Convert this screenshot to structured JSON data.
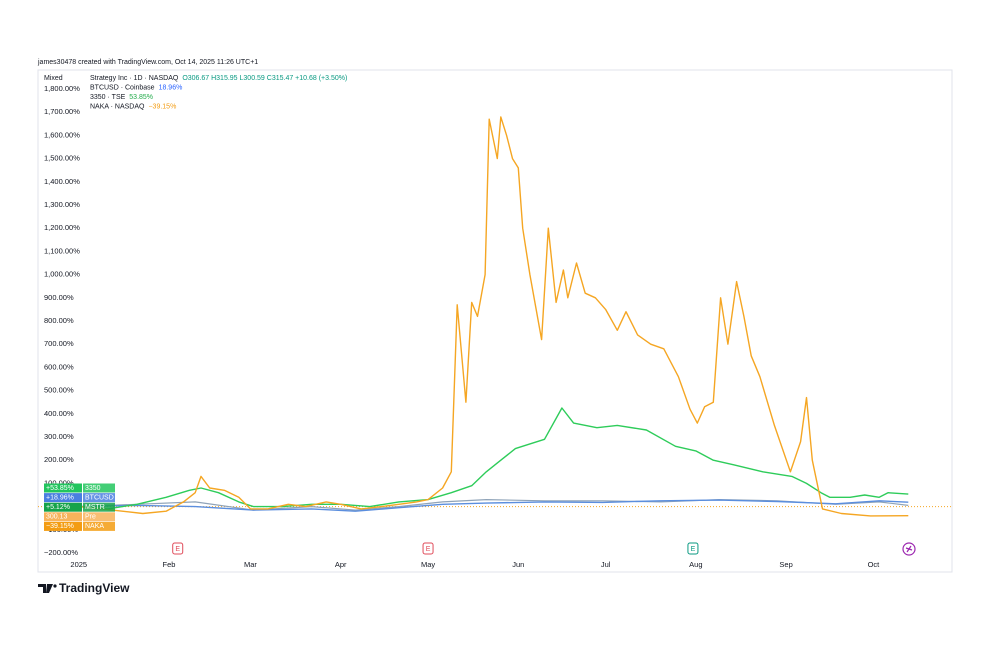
{
  "header": "james30478 created with TradingView.com, Oct 14, 2025 11:26 UTC+1",
  "scale_mode": "Mixed",
  "legend": [
    {
      "name": "Strategy Inc · 1D · NASDAQ",
      "info": "O306.67 H315.95 L300.59 C315.47 +10.68 (+3.50%)",
      "info_color": "#089981"
    },
    {
      "name": "BTCUSD · Coinbase",
      "info": "18.96%",
      "info_color": "#2962ff"
    },
    {
      "name": "3350 · TSE",
      "info": "53.85%",
      "info_color": "#22ab4a"
    },
    {
      "name": "NAKA · NASDAQ",
      "info": "−39.15%",
      "info_color": "#f39c12"
    }
  ],
  "badges": [
    {
      "text": "+53.85%",
      "name": "3350",
      "color": "#22c55e"
    },
    {
      "text": "+18.96%",
      "name": "BTCUSD",
      "color": "#4a7fe0"
    },
    {
      "text": "+5.12%",
      "name": "MSTR",
      "color": "#16a34a"
    },
    {
      "text": "300.13",
      "name": "Pre",
      "color": "#f7b35b"
    },
    {
      "text": "−39.15%",
      "name": "NAKA",
      "color": "#f39c12"
    }
  ],
  "brand": "TradingView",
  "chart_data": {
    "type": "line",
    "xlim": [
      -14,
      300
    ],
    "ylim": [
      -282,
      1882
    ],
    "grid": false,
    "xticks": [
      {
        "value": 0,
        "label": "2025"
      },
      {
        "value": 31,
        "label": "Feb"
      },
      {
        "value": 59,
        "label": "Mar"
      },
      {
        "value": 90,
        "label": "Apr"
      },
      {
        "value": 120,
        "label": "May"
      },
      {
        "value": 151,
        "label": "Jun"
      },
      {
        "value": 181,
        "label": "Jul"
      },
      {
        "value": 212,
        "label": "Aug"
      },
      {
        "value": 243,
        "label": "Sep"
      },
      {
        "value": 273,
        "label": "Oct"
      }
    ],
    "yticks": [
      {
        "value": -200,
        "label": "−200.00%"
      },
      {
        "value": -100,
        "label": "−100.00%"
      },
      {
        "value": 0,
        "label": "0.00%"
      },
      {
        "value": 100,
        "label": "100.00%"
      },
      {
        "value": 200,
        "label": "200.00%"
      },
      {
        "value": 300,
        "label": "300.00%"
      },
      {
        "value": 400,
        "label": "400.00%"
      },
      {
        "value": 500,
        "label": "500.00%"
      },
      {
        "value": 600,
        "label": "600.00%"
      },
      {
        "value": 700,
        "label": "700.00%"
      },
      {
        "value": 800,
        "label": "800.00%"
      },
      {
        "value": 900,
        "label": "900.00%"
      },
      {
        "value": 1000,
        "label": "1,000.00%"
      },
      {
        "value": 1100,
        "label": "1,100.00%"
      },
      {
        "value": 1200,
        "label": "1,200.00%"
      },
      {
        "value": 1300,
        "label": "1,300.00%"
      },
      {
        "value": 1400,
        "label": "1,400.00%"
      },
      {
        "value": 1500,
        "label": "1,500.00%"
      },
      {
        "value": 1600,
        "label": "1,600.00%"
      },
      {
        "value": 1700,
        "label": "1,700.00%"
      },
      {
        "value": 1800,
        "label": "1,800.00%"
      }
    ],
    "events": [
      {
        "label": "E",
        "x": 34,
        "color": "#e04b5a"
      },
      {
        "label": "E",
        "x": 120,
        "color": "#e04b5a"
      },
      {
        "label": "E",
        "x": 211,
        "color": "#089981"
      }
    ],
    "series": [
      {
        "name": "MSTR",
        "color": "#8fa3b8",
        "width": 1.2,
        "x": [
          0,
          20,
          40,
          60,
          80,
          95,
          110,
          125,
          140,
          160,
          180,
          200,
          220,
          240,
          260,
          275,
          285
        ],
        "values": [
          0,
          10,
          20,
          -15,
          0,
          -15,
          0,
          20,
          30,
          25,
          25,
          20,
          30,
          25,
          10,
          20,
          5.12
        ]
      },
      {
        "name": "BTCUSD",
        "color": "#5b8ede",
        "width": 1.4,
        "x": [
          0,
          20,
          40,
          60,
          80,
          95,
          110,
          125,
          140,
          160,
          180,
          200,
          220,
          240,
          260,
          275,
          285
        ],
        "values": [
          0,
          5,
          0,
          -15,
          -10,
          -20,
          -5,
          10,
          15,
          20,
          18,
          25,
          28,
          22,
          12,
          25,
          18.96
        ]
      },
      {
        "name": "3350",
        "color": "#2ecc5a",
        "width": 1.4,
        "x": [
          0,
          10,
          20,
          30,
          38,
          42,
          48,
          55,
          60,
          70,
          80,
          90,
          100,
          110,
          120,
          128,
          135,
          140,
          145,
          150,
          155,
          160,
          166,
          170,
          178,
          185,
          195,
          205,
          212,
          218,
          225,
          235,
          245,
          250,
          255,
          258,
          265,
          270,
          275,
          278,
          285
        ],
        "values": [
          0,
          -10,
          10,
          40,
          70,
          80,
          60,
          20,
          0,
          0,
          10,
          10,
          0,
          20,
          30,
          60,
          90,
          150,
          200,
          250,
          270,
          290,
          425,
          360,
          340,
          350,
          330,
          260,
          240,
          200,
          180,
          150,
          130,
          100,
          60,
          40,
          40,
          50,
          40,
          60,
          53.85
        ]
      },
      {
        "name": "NAKA",
        "color": "#f5a623",
        "width": 1.4,
        "x": [
          0,
          8,
          15,
          22,
          30,
          36,
          40,
          42,
          45,
          50,
          55,
          59,
          65,
          72,
          78,
          85,
          90,
          97,
          104,
          110,
          116,
          120,
          125,
          128,
          130,
          133,
          135,
          137,
          139.6,
          141,
          143.8,
          145,
          147,
          149,
          151,
          152.5,
          155,
          159,
          161.3,
          164,
          166.5,
          168,
          171,
          174,
          177.5,
          181,
          185,
          188,
          192,
          196.5,
          201,
          206,
          210,
          212.5,
          215,
          218,
          220.5,
          223,
          226,
          228.5,
          231,
          234,
          239,
          244.5,
          248,
          250,
          252,
          255.5,
          262,
          272,
          285
        ],
        "values": [
          0,
          -10,
          -20,
          -30,
          -20,
          20,
          60,
          130,
          80,
          70,
          40,
          -10,
          -10,
          10,
          0,
          20,
          10,
          -10,
          0,
          10,
          20,
          30,
          80,
          150,
          870,
          450,
          880,
          820,
          1000,
          1670,
          1500,
          1680,
          1600,
          1500,
          1460,
          1200,
          1000,
          720,
          1200,
          880,
          1020,
          900,
          1050,
          920,
          900,
          850,
          760,
          840,
          740,
          700,
          680,
          560,
          420,
          360,
          430,
          450,
          900,
          700,
          970,
          820,
          650,
          560,
          350,
          150,
          280,
          470,
          200,
          -10,
          -30,
          -40,
          -39.15
        ]
      }
    ]
  }
}
